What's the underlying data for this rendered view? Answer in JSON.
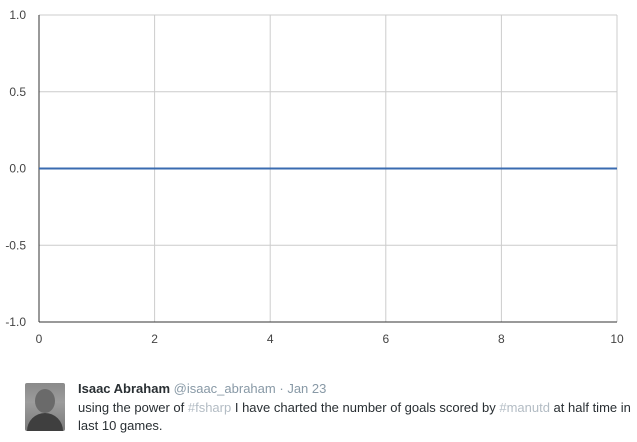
{
  "chart_data": {
    "type": "line",
    "x": [
      0,
      1,
      2,
      3,
      4,
      5,
      6,
      7,
      8,
      9,
      10
    ],
    "series": [
      {
        "values": [
          0,
          0,
          0,
          0,
          0,
          0,
          0,
          0,
          0,
          0,
          0
        ],
        "color": "#3a6bb0"
      }
    ],
    "xlim": [
      0,
      10
    ],
    "ylim": [
      -1.0,
      1.0
    ],
    "x_ticks": [
      0,
      2,
      4,
      6,
      8,
      10
    ],
    "y_ticks": [
      1.0,
      0.5,
      0.0,
      -0.5,
      -1.0
    ],
    "x_tick_labels": [
      "0",
      "2",
      "4",
      "6",
      "8",
      "10"
    ],
    "y_tick_labels": [
      "1.0",
      "0.5",
      "0.0",
      "-0.5",
      "-1.0"
    ],
    "grid": true,
    "title": "",
    "xlabel": "",
    "ylabel": ""
  },
  "tweet": {
    "author_name": "Isaac Abraham",
    "author_handle": "@isaac_abraham",
    "separator": "·",
    "date": "Jan 23",
    "text_part1": "using the power of ",
    "hashtag1": "#fsharp",
    "text_part2": " I have charted the number of goals scored by ",
    "hashtag2": "#manutd",
    "text_part3": " at half time in last 10 games."
  },
  "colors": {
    "series_line": "#3a6bb0",
    "grid": "#cccccc",
    "axis": "#333333",
    "tick_label": "#444444",
    "hashtag": "#b3bcc4",
    "muted": "#8899a6"
  }
}
